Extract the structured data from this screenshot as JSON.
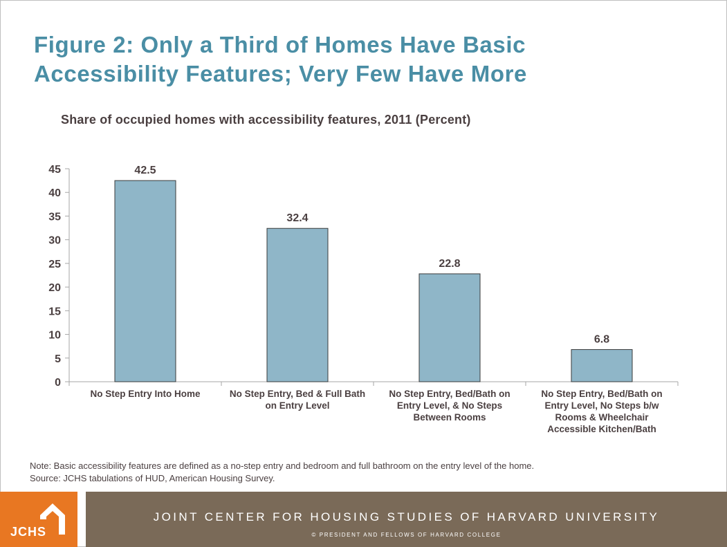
{
  "title_lines": [
    "Figure 2: Only a Third of Homes Have Basic",
    "Accessibility Features; Very Few Have More"
  ],
  "chart_data": {
    "type": "bar",
    "title": "Share of occupied homes with accessibility features, 2011 (Percent)",
    "categories": [
      [
        "No Step Entry Into Home"
      ],
      [
        "No Step Entry, Bed & Full Bath",
        "on Entry Level"
      ],
      [
        "No Step Entry, Bed/Bath on",
        "Entry Level, & No Steps",
        "Between Rooms"
      ],
      [
        "No Step Entry, Bed/Bath on",
        "Entry Level, No Steps b/w",
        "Rooms & Wheelchair",
        "Accessible Kitchen/Bath"
      ]
    ],
    "values": [
      42.5,
      32.4,
      22.8,
      6.8
    ],
    "value_labels": [
      "42.5",
      "32.4",
      "22.8",
      "6.8"
    ],
    "yticks": [
      0,
      5,
      10,
      15,
      20,
      25,
      30,
      35,
      40,
      45
    ],
    "ylim": [
      0,
      45
    ],
    "xlabel": "",
    "ylabel": "",
    "grid": false,
    "colors": {
      "bar": "#8fb6c8",
      "bar_edge": "#3a3a3a",
      "text": "#4a3f40",
      "axis": "#a6a6a6"
    }
  },
  "note": "Note: Basic accessibility features are defined as a no-step entry and bedroom and full bathroom on the entry level of the home.",
  "source": "Source: JCHS tabulations of HUD, American Housing Survey.",
  "footer": {
    "logo_text": "JCHS",
    "org_name": "JOINT CENTER FOR HOUSING STUDIES OF HARVARD UNIVERSITY",
    "copyright": "© PRESIDENT AND FELLOWS OF HARVARD COLLEGE"
  },
  "colors": {
    "title": "#4a8ea5",
    "orange": "#e87722",
    "footer_bar": "#7a6a58"
  }
}
